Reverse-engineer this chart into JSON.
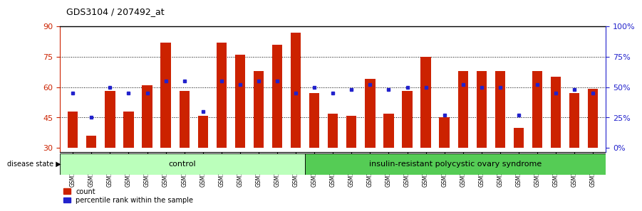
{
  "title": "GDS3104 / 207492_at",
  "samples": [
    "GSM155631",
    "GSM155643",
    "GSM155644",
    "GSM155729",
    "GSM156170",
    "GSM156171",
    "GSM156176",
    "GSM156177",
    "GSM156178",
    "GSM156179",
    "GSM156180",
    "GSM156181",
    "GSM156184",
    "GSM156186",
    "GSM156187",
    "GSM156510",
    "GSM156511",
    "GSM156512",
    "GSM156749",
    "GSM156750",
    "GSM156751",
    "GSM156752",
    "GSM156753",
    "GSM156763",
    "GSM156946",
    "GSM156948",
    "GSM156949",
    "GSM156950",
    "GSM156951"
  ],
  "counts": [
    48,
    36,
    58,
    48,
    61,
    82,
    58,
    46,
    82,
    76,
    68,
    81,
    87,
    57,
    47,
    46,
    64,
    47,
    58,
    75,
    45,
    68,
    68,
    68,
    40,
    68,
    65,
    57,
    59
  ],
  "percentile_ranks_pct": [
    45,
    25,
    50,
    45,
    45,
    55,
    55,
    30,
    55,
    52,
    55,
    55,
    45,
    50,
    45,
    48,
    52,
    48,
    50,
    50,
    27,
    52,
    50,
    50,
    27,
    52,
    45,
    48,
    45
  ],
  "n_control": 13,
  "bar_color": "#cc2200",
  "dot_color": "#2222cc",
  "ylim_left": [
    28,
    90
  ],
  "ylim_right": [
    0,
    100
  ],
  "yticks_left": [
    30,
    45,
    60,
    75,
    90
  ],
  "yticks_right": [
    0,
    25,
    50,
    75,
    100
  ],
  "ytick_right_labels": [
    "0%",
    "25%",
    "50%",
    "75%",
    "100%"
  ],
  "dotted_lines": [
    45,
    60,
    75
  ],
  "plot_bg": "#ffffff",
  "control_color": "#bbffbb",
  "insulin_color": "#55cc55",
  "label_count": "count",
  "label_percentile": "percentile rank within the sample",
  "disease_state_label": "disease state",
  "control_label": "control",
  "insulin_label": "insulin-resistant polycystic ovary syndrome"
}
